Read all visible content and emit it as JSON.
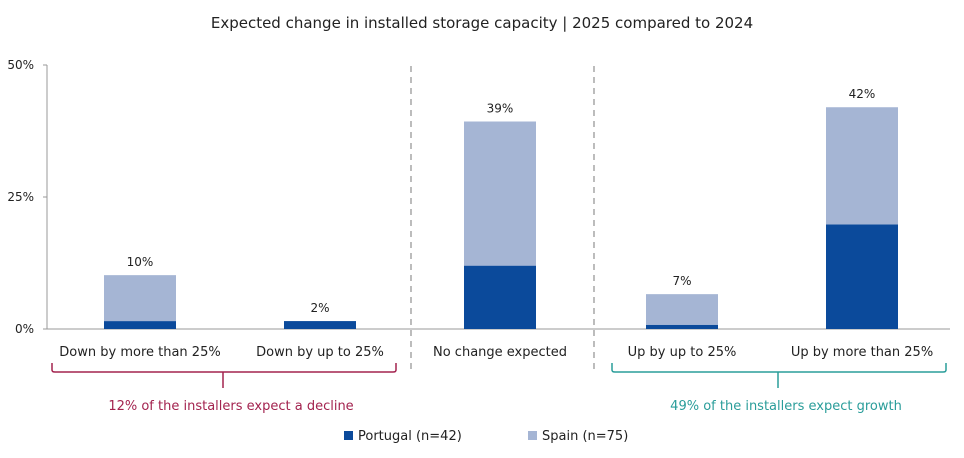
{
  "chart_data": {
    "type": "bar",
    "stacked": true,
    "title": "Expected change in installed storage capacity | 2025 compared to 2024",
    "categories": [
      "Down by more than 25%",
      "Down by up to 25%",
      "No change expected",
      "Up by up to 25%",
      "Up by more than 25%"
    ],
    "series": [
      {
        "name": "Portugal (n=42)",
        "color": "#0b4a9b",
        "values": [
          1.5,
          1.5,
          12,
          0.8,
          19.8
        ]
      },
      {
        "name": "Spain (n=75)",
        "color": "#a5b5d4",
        "values": [
          8.7,
          0,
          27.3,
          5.8,
          22.2
        ]
      }
    ],
    "totals": [
      "10%",
      "2%",
      "39%",
      "7%",
      "42%"
    ],
    "yticks": [
      "0%",
      "25%",
      "50%"
    ],
    "ylim": [
      0,
      50
    ],
    "groups": [
      {
        "label": "12% of the installers expect a decline",
        "color": "#a3234f"
      },
      {
        "label": "49% of the installers expect growth",
        "color": "#2a9d9a"
      }
    ],
    "legend_position": "bottom"
  }
}
